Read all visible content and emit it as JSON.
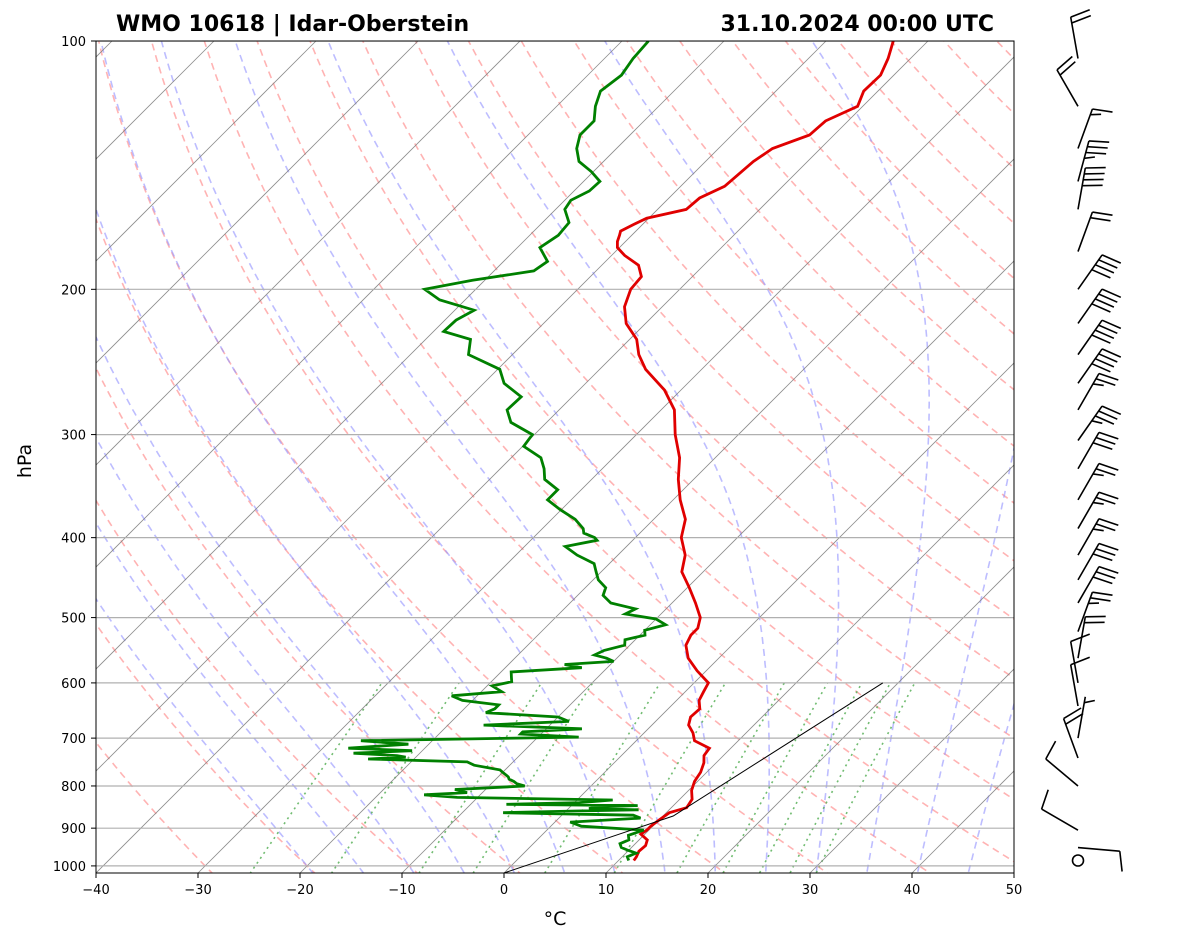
{
  "chart_data": {
    "type": "line",
    "title_left": "WMO 10618 | Idar-Oberstein",
    "title_right": "31.10.2024 00:00 UTC",
    "xlabel": "°C",
    "ylabel": "hPa",
    "xlim": [
      -40,
      50
    ],
    "ylim": [
      1020,
      100
    ],
    "x_ticks": [
      -40,
      -30,
      -20,
      -10,
      0,
      10,
      20,
      30,
      40,
      50
    ],
    "x_tick_labels": [
      "−40",
      "−30",
      "−20",
      "−10",
      "0",
      "10",
      "20",
      "30",
      "40",
      "50"
    ],
    "y_ticks": [
      100,
      200,
      300,
      400,
      500,
      600,
      700,
      800,
      900,
      1000
    ],
    "y_tick_labels": [
      "100",
      "200",
      "300",
      "400",
      "500",
      "600",
      "700",
      "800",
      "900",
      "1000"
    ],
    "y_scale": "log",
    "skew": "skew-T log-p",
    "colors": {
      "temperature": "#e00000",
      "dewpoint": "#008000",
      "dry_adiabats": "#ff9a9a",
      "moist_adiabats": "#9a9aff",
      "mixing_ratio": "#58b058",
      "isotherms": "#808080",
      "grid": "#b0b0b0"
    },
    "series": [
      {
        "key": "temperature",
        "p": [
          985,
          975,
          960,
          945,
          930,
          915,
          905,
          895,
          880,
          862,
          850,
          830,
          810,
          790,
          770,
          750,
          735,
          720,
          705,
          690,
          675,
          660,
          645,
          630,
          615,
          600,
          580,
          560,
          540,
          525,
          515,
          500,
          480,
          460,
          440,
          420,
          400,
          380,
          360,
          340,
          320,
          300,
          280,
          265,
          250,
          240,
          230,
          220,
          210,
          200,
          193,
          187,
          182,
          178,
          175,
          172,
          170,
          167,
          164,
          160,
          155,
          150,
          145,
          140,
          135,
          130,
          125,
          120,
          115,
          110,
          105,
          100
        ],
        "t": [
          11.5,
          11.4,
          11.1,
          11.2,
          10.8,
          9.6,
          9.8,
          9.8,
          10.0,
          10.3,
          11.5,
          11.2,
          10.3,
          9.7,
          9.4,
          8.8,
          8.1,
          7.9,
          5.7,
          4.8,
          3.6,
          3.0,
          3.1,
          2.2,
          1.8,
          1.4,
          -0.9,
          -3.0,
          -4.5,
          -5.0,
          -5.0,
          -5.8,
          -7.7,
          -9.8,
          -12.1,
          -13.4,
          -15.5,
          -16.9,
          -19.3,
          -21.5,
          -23.5,
          -26.2,
          -28.7,
          -31.6,
          -35.5,
          -37.6,
          -39.3,
          -41.9,
          -43.7,
          -44.8,
          -45.0,
          -46.4,
          -48.7,
          -50.2,
          -50.8,
          -51.2,
          -51.5,
          -50.9,
          -50.2,
          -47.2,
          -47.0,
          -45.7,
          -45.5,
          -45.3,
          -44.7,
          -42.4,
          -42.2,
          -40.5,
          -41.4,
          -41.3,
          -42.2,
          -43.4
        ]
      },
      {
        "key": "dewpoint",
        "p": [
          985,
          975,
          965,
          958,
          950,
          940,
          930,
          918,
          905,
          895,
          885,
          875,
          868,
          862,
          858,
          855,
          852,
          848,
          845,
          842,
          838,
          832,
          826,
          820,
          815,
          808,
          800,
          795,
          790,
          785,
          780,
          775,
          770,
          765,
          755,
          748,
          742,
          738,
          735,
          730,
          725,
          720,
          712,
          705,
          698,
          692,
          688,
          682,
          675,
          668,
          660,
          652,
          645,
          638,
          630,
          622,
          615,
          605,
          598,
          590,
          582,
          575,
          570,
          565,
          560,
          555,
          548,
          540,
          532,
          525,
          518,
          510,
          502,
          495,
          488,
          480,
          470,
          460,
          450,
          440,
          430,
          420,
          410,
          403,
          400,
          395,
          390,
          380,
          370,
          360,
          350,
          340,
          330,
          320,
          310,
          300,
          290,
          280,
          270,
          260,
          250,
          240,
          230,
          225,
          218,
          212,
          206,
          200,
          195,
          190,
          185,
          178,
          172,
          166,
          160,
          156,
          152,
          148,
          144,
          140,
          135,
          130,
          125,
          120,
          115,
          110,
          105,
          100
        ],
        "t": [
          11.0,
          10.5,
          11.0,
          10.0,
          9.0,
          8.5,
          9.0,
          8.5,
          9.5,
          3.0,
          1.5,
          8.0,
          7.0,
          -6.0,
          1.0,
          7.0,
          2.0,
          3.0,
          6.5,
          -6.5,
          0.5,
          3.5,
          -12.0,
          -15.5,
          -11.5,
          -13.0,
          -6.5,
          -7.5,
          -8.0,
          -8.7,
          -9.0,
          -9.5,
          -10.0,
          -10.5,
          -13.5,
          -14.5,
          -24.5,
          -21.0,
          -22.0,
          -26.5,
          -21.0,
          -27.5,
          -22.0,
          -27.0,
          -6.0,
          -12.0,
          -12.0,
          -6.5,
          -16.5,
          -8.5,
          -10.0,
          -17.5,
          -17.0,
          -17.0,
          -21.0,
          -22.5,
          -18.0,
          -19.5,
          -18.0,
          -18.5,
          -19.0,
          -12.5,
          -14.5,
          -10.0,
          -11.0,
          -12.5,
          -12.0,
          -10.5,
          -11.0,
          -9.5,
          -10.0,
          -8.5,
          -10.0,
          -13.5,
          -13.0,
          -16.0,
          -17.5,
          -18.0,
          -19.5,
          -20.5,
          -21.5,
          -24.0,
          -26.0,
          -23.5,
          -24.0,
          -25.5,
          -26.0,
          -27.7,
          -30.1,
          -32.3,
          -32.3,
          -34.6,
          -35.7,
          -37.1,
          -39.9,
          -40.2,
          -43.5,
          -45.1,
          -45.0,
          -48.0,
          -49.8,
          -54.3,
          -55.6,
          -59.0,
          -58.9,
          -58.1,
          -62.5,
          -65.0,
          -61.2,
          -56.1,
          -55.7,
          -57.8,
          -57.2,
          -57.4,
          -59.1,
          -59.4,
          -58.5,
          -58.4,
          -60.2,
          -62.4,
          -63.9,
          -64.9,
          -64.9,
          -66.2,
          -67.2,
          -66.7,
          -67.2,
          -67.4
        ]
      },
      {
        "key": "parcel",
        "p": [
          1020,
          870,
          600
        ],
        "t": [
          0.0,
          11.0,
          18.5
        ]
      }
    ],
    "wind_barbs": [
      {
        "p": 985,
        "speed_kt": 0
      },
      {
        "p": 950,
        "dir": 95,
        "speed_kt": 10
      },
      {
        "p": 905,
        "dir": 300,
        "speed_kt": 10
      },
      {
        "p": 800,
        "dir": 310,
        "speed_kt": 10
      },
      {
        "p": 740,
        "dir": 340,
        "speed_kt": 20
      },
      {
        "p": 700,
        "dir": 10,
        "speed_kt": 5
      },
      {
        "p": 640,
        "dir": 350,
        "speed_kt": 10
      },
      {
        "p": 600,
        "dir": 350,
        "speed_kt": 10
      },
      {
        "p": 560,
        "dir": 10,
        "speed_kt": 20
      },
      {
        "p": 520,
        "dir": 20,
        "speed_kt": 25
      },
      {
        "p": 480,
        "dir": 30,
        "speed_kt": 30
      },
      {
        "p": 450,
        "dir": 30,
        "speed_kt": 30
      },
      {
        "p": 420,
        "dir": 30,
        "speed_kt": 25
      },
      {
        "p": 390,
        "dir": 30,
        "speed_kt": 25
      },
      {
        "p": 360,
        "dir": 30,
        "speed_kt": 25
      },
      {
        "p": 330,
        "dir": 30,
        "speed_kt": 30
      },
      {
        "p": 305,
        "dir": 35,
        "speed_kt": 35
      },
      {
        "p": 280,
        "dir": 30,
        "speed_kt": 25
      },
      {
        "p": 260,
        "dir": 35,
        "speed_kt": 40
      },
      {
        "p": 240,
        "dir": 35,
        "speed_kt": 40
      },
      {
        "p": 220,
        "dir": 35,
        "speed_kt": 40
      },
      {
        "p": 200,
        "dir": 35,
        "speed_kt": 40
      },
      {
        "p": 180,
        "dir": 20,
        "speed_kt": 20
      },
      {
        "p": 160,
        "dir": 10,
        "speed_kt": 40
      },
      {
        "p": 148,
        "dir": 15,
        "speed_kt": 35
      },
      {
        "p": 135,
        "dir": 20,
        "speed_kt": 15
      },
      {
        "p": 120,
        "dir": 330,
        "speed_kt": 20
      },
      {
        "p": 105,
        "dir": 350,
        "speed_kt": 20
      }
    ]
  }
}
